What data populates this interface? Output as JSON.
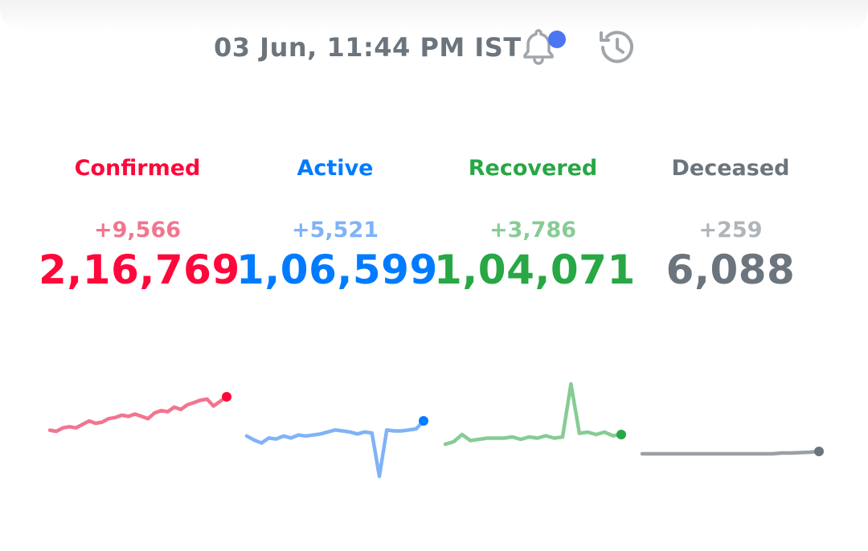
{
  "header": {
    "timestamp": "03 Jun, 11:44 PM IST",
    "icons": [
      "bell-icon",
      "history-icon"
    ],
    "notification_dot_color": "#4c75f2"
  },
  "stats": [
    {
      "label": "Confirmed",
      "delta": "+9,566",
      "total": "2,16,769",
      "color": "#ff073a",
      "delta_color": "#f27590",
      "line_color": "#f27590"
    },
    {
      "label": "Active",
      "delta": "+5,521",
      "total": "1,06,599",
      "color": "#007bff",
      "delta_color": "#7fb3f7",
      "line_color": "#7fb3f7"
    },
    {
      "label": "Recovered",
      "delta": "+3,786",
      "total": "1,04,071",
      "color": "#28a745",
      "delta_color": "#86cc95",
      "line_color": "#86cc95"
    },
    {
      "label": "Deceased",
      "delta": "+259",
      "total": "6,088",
      "color": "#6c757d",
      "delta_color": "#b0b5ba",
      "line_color": "#9aa0a6"
    }
  ],
  "sparklines": [
    {
      "name": "confirmed-trend",
      "values": [
        4,
        3,
        6,
        7,
        6,
        9,
        12,
        10,
        11,
        14,
        15,
        17,
        16,
        18,
        16,
        14,
        19,
        21,
        20,
        24,
        22,
        26,
        28,
        30,
        31,
        25,
        29,
        33
      ]
    },
    {
      "name": "active-trend",
      "values": [
        12,
        8,
        5,
        10,
        9,
        12,
        10,
        13,
        12,
        13,
        14,
        16,
        18,
        17,
        16,
        14,
        16,
        15,
        -28,
        18,
        17,
        17,
        18,
        19,
        27
      ]
    },
    {
      "name": "recovered-trend",
      "values": [
        8,
        10,
        16,
        11,
        12,
        13,
        13,
        13,
        14,
        12,
        14,
        13,
        15,
        13,
        14,
        58,
        17,
        18,
        16,
        18,
        15,
        16
      ]
    },
    {
      "name": "deceased-trend",
      "values": [
        0,
        0,
        0,
        0,
        0,
        0,
        0,
        0,
        0,
        0,
        0,
        0,
        0,
        0,
        0,
        0.2,
        0.2,
        0.3,
        0.4,
        0.6
      ]
    }
  ]
}
